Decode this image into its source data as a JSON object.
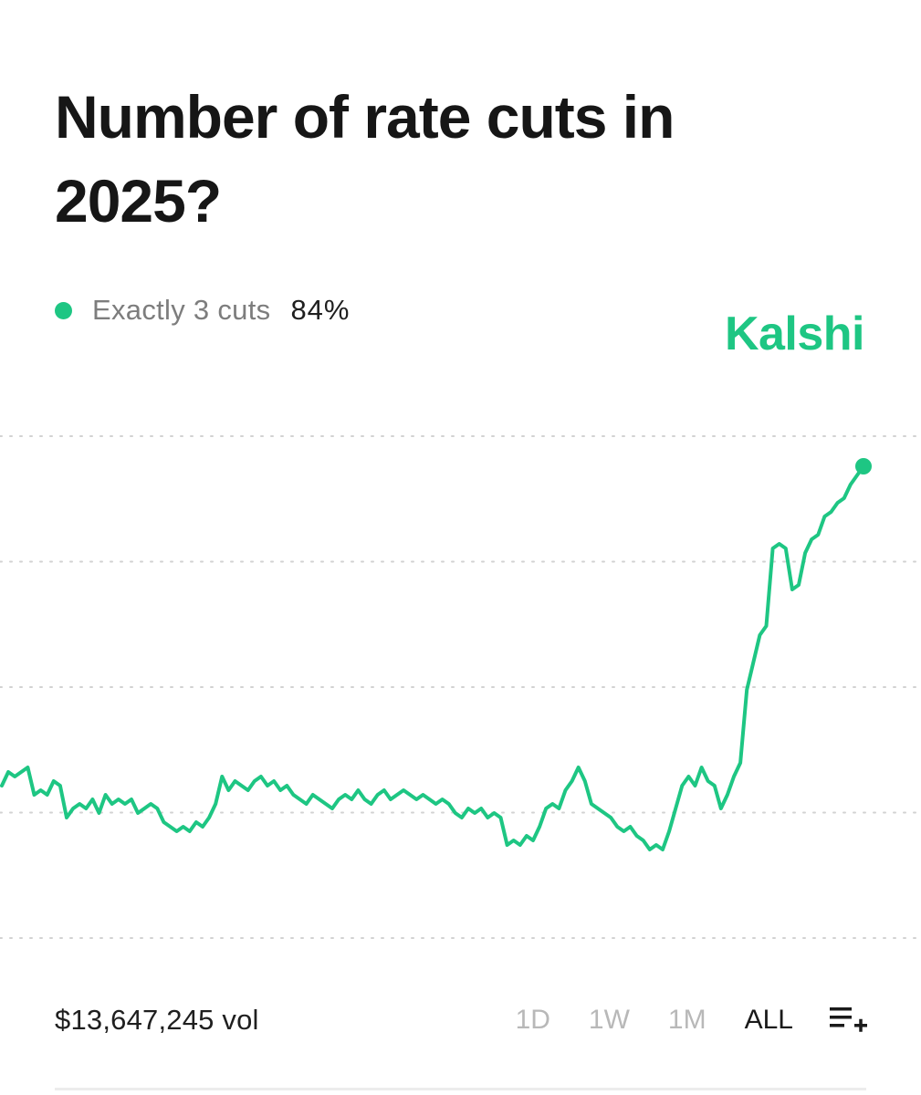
{
  "title": "Number of rate cuts in 2025?",
  "legend": {
    "label": "Exactly 3 cuts",
    "value": "84%"
  },
  "brand": "Kalshi",
  "colors": {
    "accent": "#1ec683",
    "grid": "#d2d2d2"
  },
  "footer": {
    "volume": "$13,647,245 vol",
    "ranges": [
      "1D",
      "1W",
      "1M",
      "ALL"
    ],
    "active_range": "ALL",
    "icon": "list-add-icon"
  },
  "chart_data": {
    "type": "line",
    "series": [
      {
        "values": [
          43,
          46,
          45,
          46,
          47,
          41,
          42,
          41,
          44,
          43,
          36,
          38,
          39,
          38,
          40,
          37,
          41,
          39,
          40,
          39,
          40,
          37,
          38,
          39,
          38,
          35,
          34,
          33,
          34,
          33,
          35,
          34,
          36,
          39,
          45,
          42,
          44,
          43,
          42,
          44,
          45,
          43,
          44,
          42,
          43,
          41,
          40,
          39,
          41,
          40,
          39,
          38,
          40,
          41,
          40,
          42,
          40,
          39,
          41,
          42,
          40,
          41,
          42,
          41,
          40,
          41,
          40,
          39,
          40,
          39,
          37,
          36,
          38,
          37,
          38,
          36,
          37,
          36,
          30,
          31,
          30,
          32,
          31,
          34,
          38,
          39,
          38,
          42,
          44,
          47,
          44,
          39,
          38,
          37,
          36,
          34,
          33,
          34,
          32,
          31,
          29,
          30,
          29,
          33,
          38,
          43,
          45,
          43,
          47,
          44,
          43,
          38,
          41,
          45,
          48,
          64,
          70,
          76,
          78,
          95,
          96,
          95,
          86,
          87,
          94,
          97,
          98,
          102,
          103,
          105,
          106,
          109,
          111,
          113
        ]
      }
    ],
    "grid": true,
    "end_marker": true
  }
}
